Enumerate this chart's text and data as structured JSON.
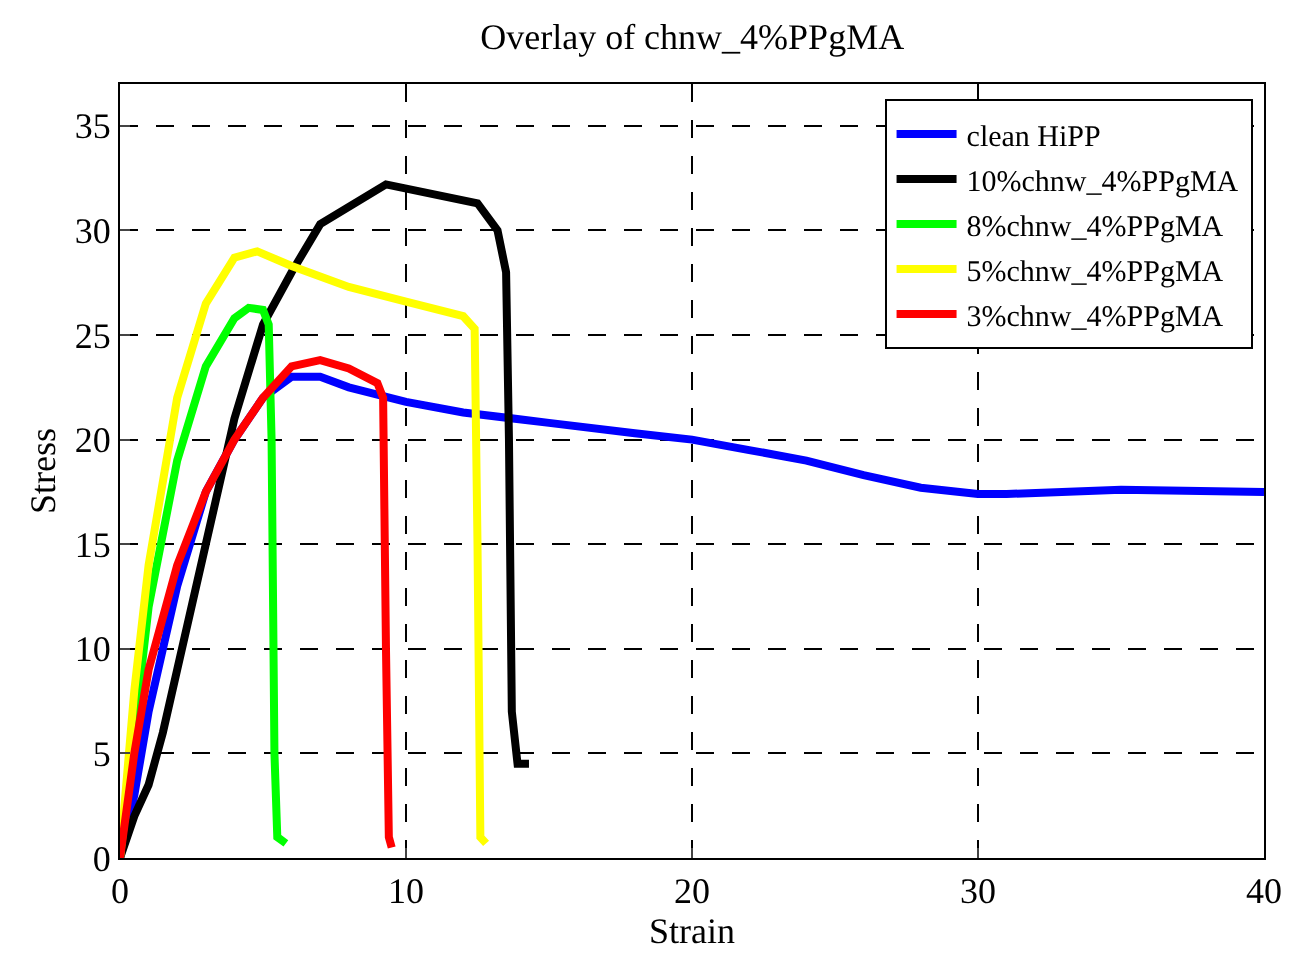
{
  "chart_data": {
    "type": "line",
    "title": "Overlay of chnw_4%PPgMA",
    "xlabel": "Strain",
    "ylabel": "Stress",
    "xlim": [
      0,
      40
    ],
    "ylim": [
      0,
      37
    ],
    "xticks": [
      0,
      10,
      20,
      30,
      40
    ],
    "yticks": [
      0,
      5,
      10,
      15,
      20,
      25,
      30,
      35
    ],
    "grid": true,
    "legend": "top right",
    "line_style": "solid",
    "series": [
      {
        "name": "clean HiPP",
        "color": "#0000ff",
        "x": [
          0,
          0.5,
          1,
          2,
          3,
          4,
          5,
          6,
          7,
          8,
          10,
          12,
          15,
          18,
          20,
          22,
          24,
          26,
          28,
          30,
          31,
          35,
          40
        ],
        "values": [
          0,
          3,
          7,
          13,
          17.5,
          20,
          22,
          23,
          23,
          22.5,
          21.8,
          21.3,
          20.8,
          20.3,
          20,
          19.5,
          19,
          18.3,
          17.7,
          17.4,
          17.4,
          17.6,
          17.5
        ]
      },
      {
        "name": "10%chnw_4%PPgMA",
        "color": "#000000",
        "x": [
          0,
          0.5,
          1,
          1.5,
          2,
          3,
          4,
          5,
          6,
          7,
          9.3,
          12.5,
          13.2,
          13.5,
          13.6,
          13.7,
          13.9,
          14.3
        ],
        "values": [
          0,
          2,
          3.5,
          6,
          9,
          15,
          21,
          25.5,
          28,
          30.3,
          32.2,
          31.3,
          30,
          28,
          20,
          7,
          4.5,
          4.5
        ]
      },
      {
        "name": "8%chnw_4%PPgMA",
        "color": "#00ff00",
        "x": [
          0,
          0.5,
          1,
          2,
          3,
          4,
          4.5,
          5,
          5.2,
          5.3,
          5.4,
          5.5,
          5.8
        ],
        "values": [
          0,
          6,
          12,
          19,
          23.5,
          25.8,
          26.3,
          26.2,
          25.5,
          20,
          5,
          1,
          0.7
        ]
      },
      {
        "name": "5%chnw_4%PPgMA",
        "color": "#ffff00",
        "x": [
          0,
          0.5,
          1,
          2,
          3,
          4,
          4.8,
          6,
          8,
          10,
          12,
          12.4,
          12.5,
          12.6,
          12.8
        ],
        "values": [
          0,
          8,
          14,
          22,
          26.5,
          28.7,
          29,
          28.3,
          27.3,
          26.6,
          25.9,
          25.3,
          15,
          1,
          0.7
        ]
      },
      {
        "name": "3%chnw_4%PPgMA",
        "color": "#ff0000",
        "x": [
          0,
          0.5,
          1,
          2,
          3,
          4,
          5,
          6,
          7,
          8,
          9,
          9.2,
          9.3,
          9.4,
          9.5
        ],
        "values": [
          0,
          5,
          9,
          14,
          17.5,
          20,
          22,
          23.5,
          23.8,
          23.4,
          22.7,
          22,
          10,
          1,
          0.5
        ]
      }
    ]
  }
}
